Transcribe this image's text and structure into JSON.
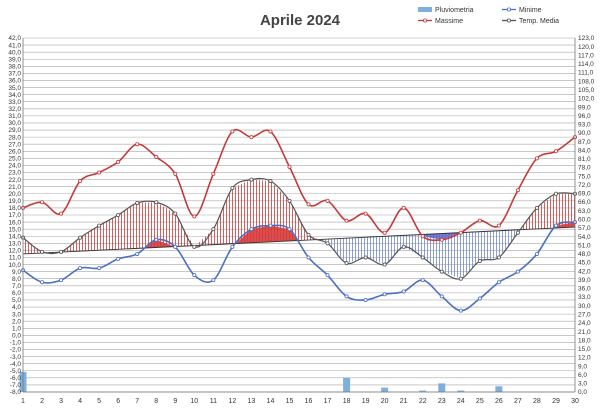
{
  "chart_data": {
    "type": "line",
    "title": "Aprile 2024",
    "x": [
      1,
      2,
      3,
      4,
      5,
      6,
      7,
      8,
      9,
      10,
      11,
      12,
      13,
      14,
      15,
      16,
      17,
      18,
      19,
      20,
      21,
      22,
      23,
      24,
      25,
      26,
      27,
      28,
      29,
      30
    ],
    "x_ticks": [
      "1",
      "2",
      "3",
      "4",
      "5",
      "6",
      "7",
      "8",
      "9",
      "10",
      "11",
      "12",
      "13",
      "14",
      "15",
      "16",
      "17",
      "18",
      "19",
      "20",
      "21",
      "22",
      "23",
      "24",
      "25",
      "26",
      "27",
      "28",
      "29",
      "30"
    ],
    "y_left_range": [
      -8,
      42
    ],
    "y_right_range": [
      0,
      123
    ],
    "y_left_ticks": [
      "42,0",
      "41,0",
      "40,0",
      "39,0",
      "38,0",
      "37,0",
      "36,0",
      "35,0",
      "34,0",
      "33,0",
      "32,0",
      "31,0",
      "30,0",
      "29,0",
      "28,0",
      "27,0",
      "26,0",
      "25,0",
      "24,0",
      "23,0",
      "22,0",
      "21,0",
      "20,0",
      "19,0",
      "18,0",
      "17,0",
      "16,0",
      "15,0",
      "14,0",
      "13,0",
      "12,0",
      "11,0",
      "10,0",
      "9,0",
      "8,0",
      "7,0",
      "6,0",
      "5,0",
      "4,0",
      "3,0",
      "2,0",
      "1,0",
      "0,0",
      "-1,0",
      "-2,0",
      "-3,0",
      "-4,0",
      "-5,0",
      "-6,0",
      "-7,0",
      "-8,0"
    ],
    "y_right_ticks": [
      "123,0",
      "120,0",
      "117,0",
      "114,0",
      "111,0",
      "108,0",
      "105,0",
      "102,0",
      "99,0",
      "96,0",
      "93,0",
      "90,0",
      "87,0",
      "84,0",
      "81,0",
      "78,0",
      "75,0",
      "72,0",
      "69,0",
      "66,0",
      "63,0",
      "60,0",
      "57,0",
      "54,0",
      "51,0",
      "48,0",
      "45,0",
      "42,0",
      "39,0",
      "36,0",
      "33,0",
      "30,0",
      "27,0",
      "24,0",
      "21,0",
      "18,0",
      "15,0",
      "12,0",
      "9,0",
      "6,0",
      "3,0",
      "0,0"
    ],
    "grid": true,
    "legend_placement": "top-right",
    "normal_line": {
      "start": 11.5,
      "end": 15.3
    },
    "series": [
      {
        "name": "Pluviometria",
        "kind": "bar",
        "axis": "right",
        "color": "#7fb0dd",
        "values": [
          7,
          0,
          0,
          0,
          0,
          0,
          0,
          0,
          0,
          0,
          0,
          0,
          0,
          0,
          0,
          0,
          0,
          5,
          0,
          1.5,
          0,
          0.5,
          3,
          0.5,
          0,
          2,
          0,
          0,
          0,
          0
        ]
      },
      {
        "name": "Minime",
        "kind": "line",
        "axis": "left",
        "color": "#4a6fc4",
        "values": [
          9.2,
          7.5,
          7.8,
          9.5,
          9.5,
          10.8,
          11.5,
          13.5,
          12.5,
          8.5,
          7.8,
          12.5,
          15,
          15.5,
          15,
          11,
          8.5,
          5.5,
          5,
          5.8,
          6.2,
          7.8,
          5.5,
          3.5,
          5.2,
          7.5,
          9,
          11.5,
          15.5,
          16
        ]
      },
      {
        "name": "Massime",
        "kind": "line",
        "axis": "left",
        "color": "#c43a3a",
        "values": [
          18,
          18.8,
          17.2,
          21.8,
          23,
          24.5,
          27,
          25.2,
          22.8,
          16.8,
          22.8,
          28.8,
          28,
          28.8,
          23.8,
          18.5,
          19,
          16.2,
          17.2,
          14.5,
          18,
          14,
          13.5,
          14.5,
          16.2,
          15.5,
          20.5,
          25,
          26,
          28
        ]
      },
      {
        "name": "Temp. Media",
        "kind": "line",
        "axis": "left",
        "color": "#555555",
        "values": [
          13.8,
          11.8,
          11.8,
          13.8,
          15.5,
          17,
          18.7,
          18.8,
          17.2,
          12.5,
          15,
          20.8,
          22,
          21.8,
          19,
          14.2,
          13,
          10.2,
          11,
          10,
          12.5,
          11,
          9,
          8,
          10.5,
          11,
          14.5,
          18,
          20,
          20
        ]
      }
    ]
  }
}
